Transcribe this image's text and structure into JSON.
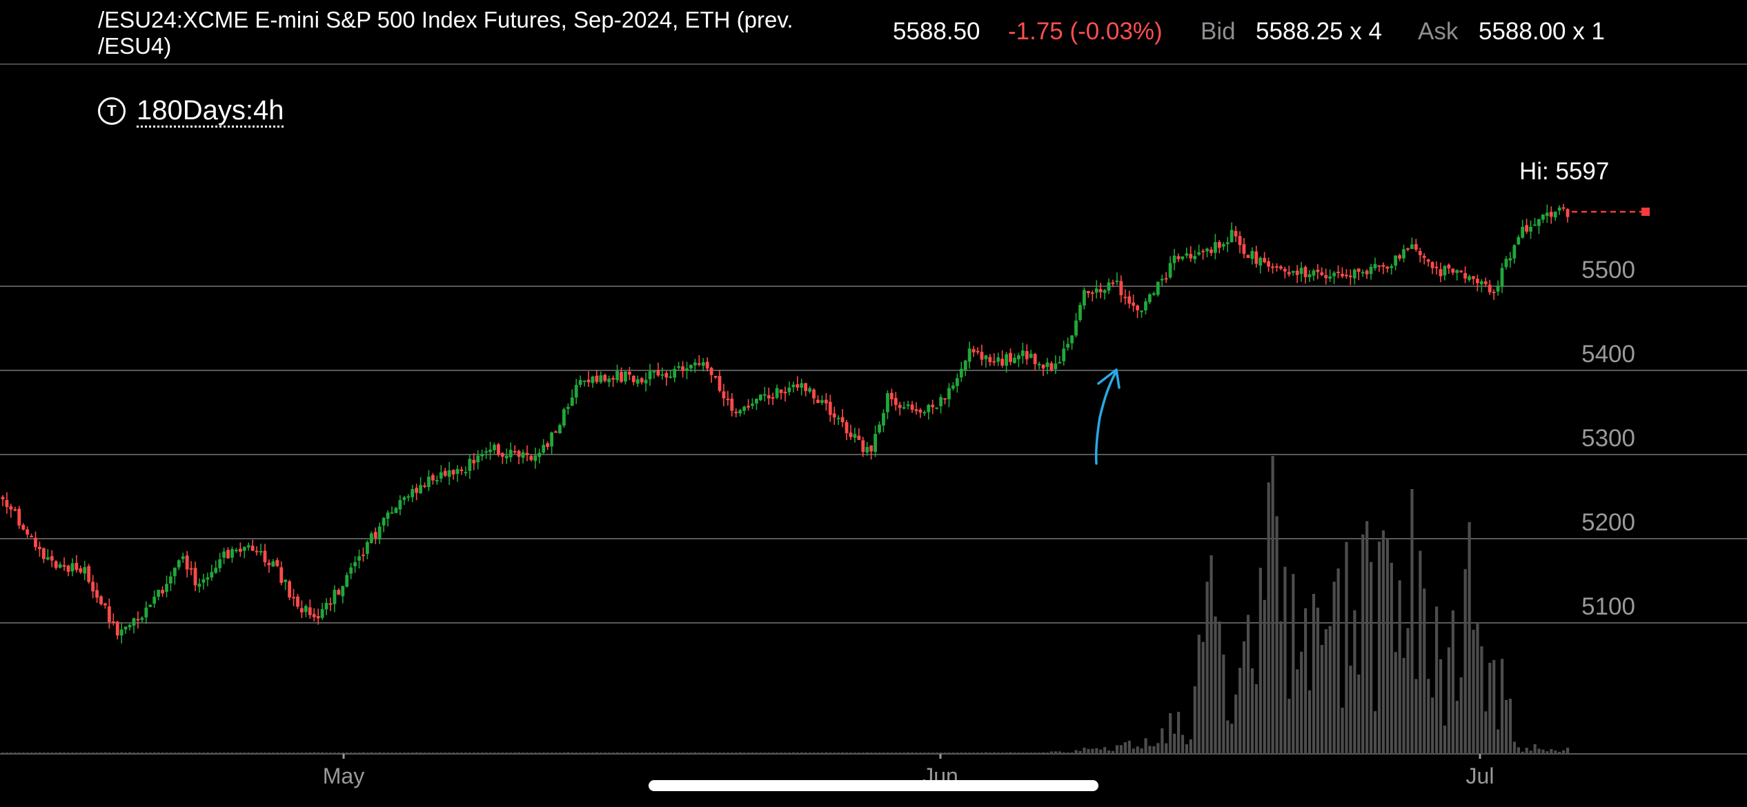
{
  "header": {
    "title": "/ESU24:XCME E-mini S&P 500 Index Futures, Sep-2024, ETH (prev. /ESU4)",
    "last": "5588.50",
    "change": "-1.75 (-0.03%)",
    "bid_label": "Bid",
    "bid": "5588.25 x 4",
    "ask_label": "Ask",
    "ask": "5588.00 x 1"
  },
  "period": {
    "icon": "t-circle-icon",
    "icon_glyph": "T",
    "label": "180Days:4h"
  },
  "colors": {
    "up": "#1fa83a",
    "down": "#ff4a4a",
    "grid": "#5a5a5a",
    "volume": "#4d4d4d",
    "annotation": "#29a9e6",
    "axis_text": "#9a9a9a",
    "last_line": "#ff3b3b"
  },
  "chart_data": {
    "type": "candlestick",
    "y_ticks": [
      5100,
      5200,
      5300,
      5400,
      5500
    ],
    "x_ticks": [
      "May",
      "Jun",
      "Jul"
    ],
    "hi_label": "Hi: 5597",
    "last_price": 5588.5,
    "ylim": [
      5000,
      5620
    ],
    "price_path": [
      [
        0,
        5250
      ],
      [
        4,
        5220
      ],
      [
        10,
        5175
      ],
      [
        20,
        5160
      ],
      [
        28,
        5090
      ],
      [
        36,
        5120
      ],
      [
        44,
        5175
      ],
      [
        48,
        5140
      ],
      [
        54,
        5180
      ],
      [
        60,
        5190
      ],
      [
        66,
        5170
      ],
      [
        72,
        5120
      ],
      [
        78,
        5110
      ],
      [
        84,
        5155
      ],
      [
        90,
        5200
      ],
      [
        98,
        5250
      ],
      [
        104,
        5270
      ],
      [
        112,
        5280
      ],
      [
        118,
        5310
      ],
      [
        124,
        5300
      ],
      [
        130,
        5300
      ],
      [
        134,
        5320
      ],
      [
        140,
        5380
      ],
      [
        148,
        5395
      ],
      [
        156,
        5390
      ],
      [
        164,
        5400
      ],
      [
        172,
        5405
      ],
      [
        178,
        5350
      ],
      [
        186,
        5370
      ],
      [
        194,
        5385
      ],
      [
        200,
        5360
      ],
      [
        206,
        5330
      ],
      [
        212,
        5300
      ],
      [
        216,
        5370
      ],
      [
        222,
        5350
      ],
      [
        228,
        5355
      ],
      [
        236,
        5420
      ],
      [
        242,
        5410
      ],
      [
        250,
        5420
      ],
      [
        256,
        5400
      ],
      [
        260,
        5430
      ],
      [
        264,
        5490
      ],
      [
        272,
        5500
      ],
      [
        278,
        5470
      ],
      [
        286,
        5530
      ],
      [
        294,
        5540
      ],
      [
        300,
        5560
      ],
      [
        306,
        5530
      ],
      [
        312,
        5520
      ],
      [
        322,
        5510
      ],
      [
        332,
        5520
      ],
      [
        340,
        5530
      ],
      [
        344,
        5555
      ],
      [
        350,
        5520
      ],
      [
        358,
        5510
      ],
      [
        364,
        5495
      ],
      [
        370,
        5560
      ],
      [
        376,
        5585
      ],
      [
        382,
        5588.5
      ]
    ],
    "volume_profile": [
      [
        0,
        0.005
      ],
      [
        250,
        0.005
      ],
      [
        265,
        0.02
      ],
      [
        280,
        0.06
      ],
      [
        290,
        0.2
      ],
      [
        295,
        0.6
      ],
      [
        300,
        0.1
      ],
      [
        310,
        0.9
      ],
      [
        322,
        0.4
      ],
      [
        332,
        0.8
      ],
      [
        340,
        0.6
      ],
      [
        346,
        0.9
      ],
      [
        352,
        0.3
      ],
      [
        358,
        0.7
      ],
      [
        362,
        0.2
      ],
      [
        366,
        0.5
      ],
      [
        370,
        0.03
      ],
      [
        382,
        0.03
      ]
    ]
  },
  "annotation": {
    "type": "hand-drawn-arrow",
    "color": "#29a9e6"
  }
}
